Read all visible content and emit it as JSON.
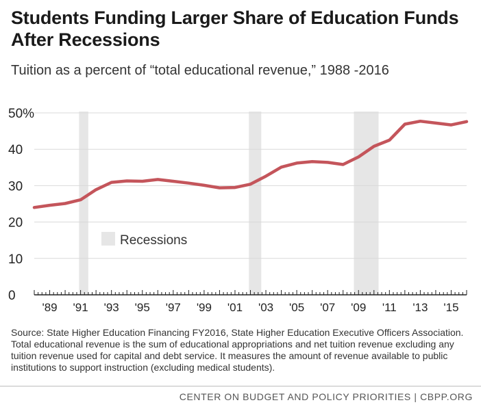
{
  "header": {
    "title": "Students Funding Larger Share of Education Funds After Recessions",
    "subtitle": "Tuition as a percent of “total educational revenue,” 1988 -2016"
  },
  "chart_data": {
    "type": "line",
    "title": "Students Funding Larger Share of Education Funds After Recessions",
    "subtitle": "Tuition as a percent of “total educational revenue,” 1988 -2016",
    "xlabel": "",
    "ylabel": "",
    "xlim": [
      1988,
      2016
    ],
    "ylim": [
      0,
      50
    ],
    "yticks": [
      0,
      10,
      20,
      30,
      40,
      50
    ],
    "ytick_labels": [
      "0",
      "10",
      "20",
      "30",
      "40",
      "50%"
    ],
    "xticks": [
      1989,
      1991,
      1993,
      1995,
      1997,
      1999,
      2001,
      2003,
      2005,
      2007,
      2009,
      2011,
      2013,
      2015
    ],
    "xtick_labels": [
      "'89",
      "'91",
      "'93",
      "'95",
      "'97",
      "'99",
      "'01",
      "'03",
      "'05",
      "'07",
      "'09",
      "'11",
      "'13",
      "'15"
    ],
    "grid": true,
    "series": [
      {
        "name": "Tuition share of total educational revenue",
        "x": [
          1988,
          1989,
          1990,
          1991,
          1992,
          1993,
          1994,
          1995,
          1996,
          1997,
          1998,
          1999,
          2000,
          2001,
          2002,
          2003,
          2004,
          2005,
          2006,
          2007,
          2008,
          2009,
          2010,
          2011,
          2012,
          2013,
          2014,
          2015,
          2016
        ],
        "values": [
          24.0,
          24.6,
          25.1,
          26.1,
          28.9,
          30.9,
          31.3,
          31.2,
          31.7,
          31.2,
          30.7,
          30.1,
          29.4,
          29.5,
          30.4,
          32.6,
          35.1,
          36.2,
          36.6,
          36.4,
          35.8,
          37.9,
          40.8,
          42.5,
          46.9,
          47.7,
          47.2,
          46.7,
          47.6
        ],
        "color": "#c4555b"
      }
    ],
    "recessions": [
      {
        "start": 1990.9,
        "end": 1991.5
      },
      {
        "start": 2001.9,
        "end": 2002.7
      },
      {
        "start": 2008.7,
        "end": 2010.3
      }
    ],
    "legend": {
      "label": "Recessions",
      "color": "#e6e6e6",
      "position": "upper-left inside plot"
    },
    "colors": {
      "line": "#c4555b",
      "recession": "#e6e6e6",
      "grid": "#d9d9d9",
      "axis": "#222222",
      "text": "#222222"
    }
  },
  "source_note": "Source: State Higher Education Financing FY2016, State Higher Education Executive Officers Association. Total educational revenue is the sum of educational appropriations and net tuition revenue excluding any tuition revenue used for capital and debt service. It measures the amount of revenue available to public institutions to support instruction (excluding medical students).",
  "footer": "CENTER ON BUDGET AND POLICY PRIORITIES | CBPP.ORG"
}
